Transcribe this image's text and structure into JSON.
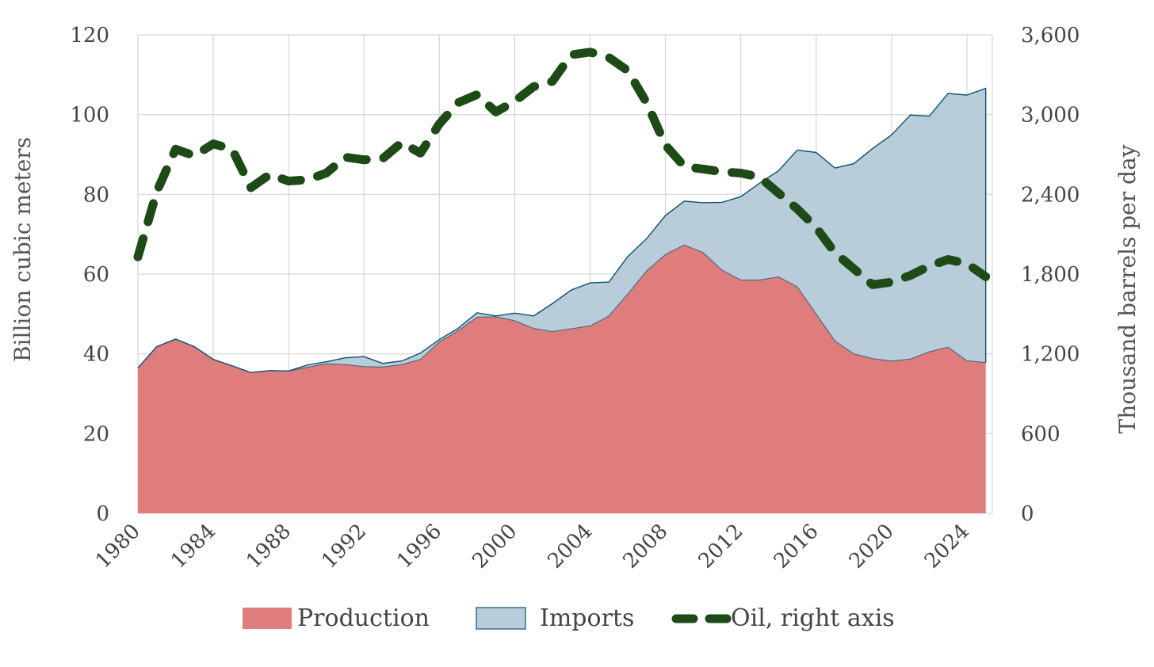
{
  "chart_data": {
    "type": "area",
    "title": "",
    "x_label": "",
    "y_left_label": "Billion cubic meters",
    "y_right_label": "Thousand barrels per day",
    "x_range": [
      1980,
      2025
    ],
    "y_left_range": [
      0,
      120
    ],
    "y_right_range": [
      0,
      3600
    ],
    "grid": true,
    "legend_position": "bottom",
    "x_ticks": [
      1980,
      1984,
      1988,
      1992,
      1996,
      2000,
      2004,
      2008,
      2012,
      2016,
      2020,
      2024
    ],
    "y_left_ticks": [
      0,
      20,
      40,
      60,
      80,
      100,
      120
    ],
    "y_right_ticks": [
      "0",
      "600",
      "1,200",
      "1,800",
      "2,400",
      "3,000",
      "3,600"
    ],
    "years": [
      1980,
      1981,
      1982,
      1983,
      1984,
      1985,
      1986,
      1987,
      1988,
      1989,
      1990,
      1991,
      1992,
      1993,
      1994,
      1995,
      1996,
      1997,
      1998,
      1999,
      2000,
      2001,
      2002,
      2003,
      2004,
      2005,
      2006,
      2007,
      2008,
      2009,
      2010,
      2011,
      2012,
      2013,
      2014,
      2015,
      2016,
      2017,
      2018,
      2019,
      2020,
      2021,
      2022,
      2023,
      2024,
      2025
    ],
    "series": [
      {
        "name": "Production",
        "axis": "left",
        "style": "area",
        "color": "#df7d7d",
        "values": [
          36.5,
          41.8,
          43.7,
          41.8,
          38.6,
          37.0,
          35.3,
          35.8,
          35.7,
          36.6,
          37.5,
          37.3,
          36.8,
          36.7,
          37.3,
          38.6,
          43.0,
          45.8,
          49.2,
          49.3,
          48.3,
          46.4,
          45.6,
          46.3,
          47.0,
          49.5,
          55.0,
          60.8,
          64.9,
          67.3,
          65.4,
          61.0,
          58.5,
          58.5,
          59.3,
          56.8,
          50.0,
          43.2,
          40.0,
          38.8,
          38.2,
          38.7,
          40.5,
          41.7,
          38.3,
          37.8
        ]
      },
      {
        "name": "Imports",
        "axis": "left",
        "style": "stacked-area",
        "color": "#b8cdd9",
        "edge_color": "#0e5170",
        "totals": [
          36.5,
          41.8,
          43.7,
          41.8,
          38.6,
          37.0,
          35.3,
          35.8,
          35.7,
          37.2,
          38.0,
          39.0,
          39.3,
          37.6,
          38.2,
          40.2,
          43.6,
          46.4,
          50.3,
          49.5,
          50.2,
          49.5,
          52.6,
          56.0,
          57.8,
          58.0,
          64.4,
          68.9,
          74.7,
          78.3,
          77.9,
          78.0,
          79.4,
          82.8,
          85.9,
          91.1,
          90.5,
          86.6,
          87.7,
          91.5,
          94.9,
          99.9,
          99.6,
          105.3,
          104.9,
          106.6
        ]
      },
      {
        "name": "Oil, right axis",
        "axis": "right",
        "style": "dashed-line",
        "color": "#1e4a18",
        "values": [
          1930,
          2420,
          2740,
          2690,
          2780,
          2740,
          2450,
          2550,
          2500,
          2510,
          2560,
          2680,
          2660,
          2670,
          2790,
          2710,
          2930,
          3090,
          3150,
          3020,
          3100,
          3210,
          3250,
          3450,
          3470,
          3430,
          3330,
          3090,
          2770,
          2610,
          2590,
          2570,
          2560,
          2530,
          2410,
          2290,
          2150,
          1960,
          1840,
          1720,
          1740,
          1790,
          1860,
          1910,
          1880,
          1780
        ]
      }
    ]
  }
}
